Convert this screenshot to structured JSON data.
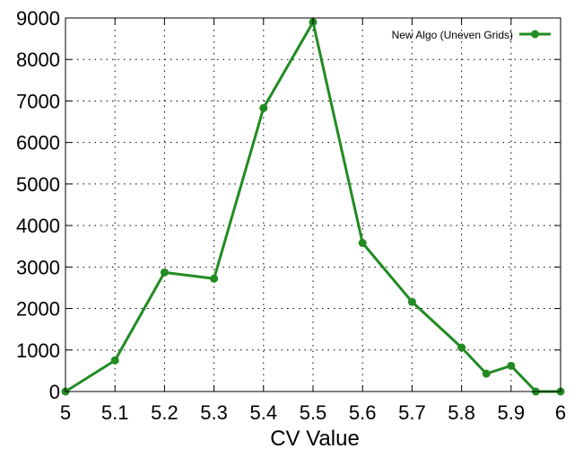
{
  "chart_data": {
    "type": "line",
    "xlabel": "CV Value",
    "ylabel": "",
    "title": "",
    "xlim": [
      5,
      6
    ],
    "ylim": [
      0,
      9000
    ],
    "xticks": [
      5,
      5.1,
      5.2,
      5.3,
      5.4,
      5.5,
      5.6,
      5.7,
      5.8,
      5.9,
      6
    ],
    "xtick_labels": [
      "5",
      "5.1",
      "5.2",
      "5.3",
      "5.4",
      "5.5",
      "5.6",
      "5.7",
      "5.8",
      "5.9",
      "6"
    ],
    "yticks": [
      0,
      1000,
      2000,
      3000,
      4000,
      5000,
      6000,
      7000,
      8000,
      9000
    ],
    "ytick_labels": [
      "0",
      "1000",
      "2000",
      "3000",
      "4000",
      "5000",
      "6000",
      "7000",
      "8000",
      "9000"
    ],
    "grid": true,
    "legend_position": "top-right",
    "series": [
      {
        "name": "New Algo (Uneven Grids)",
        "color": "#228B22",
        "marker": "circle",
        "x": [
          5.0,
          5.1,
          5.2,
          5.3,
          5.4,
          5.5,
          5.6,
          5.7,
          5.8,
          5.85,
          5.9,
          5.95,
          6.0
        ],
        "y": [
          0,
          750,
          2870,
          2720,
          6830,
          8900,
          3580,
          2160,
          1060,
          430,
          620,
          0,
          0
        ]
      }
    ]
  }
}
